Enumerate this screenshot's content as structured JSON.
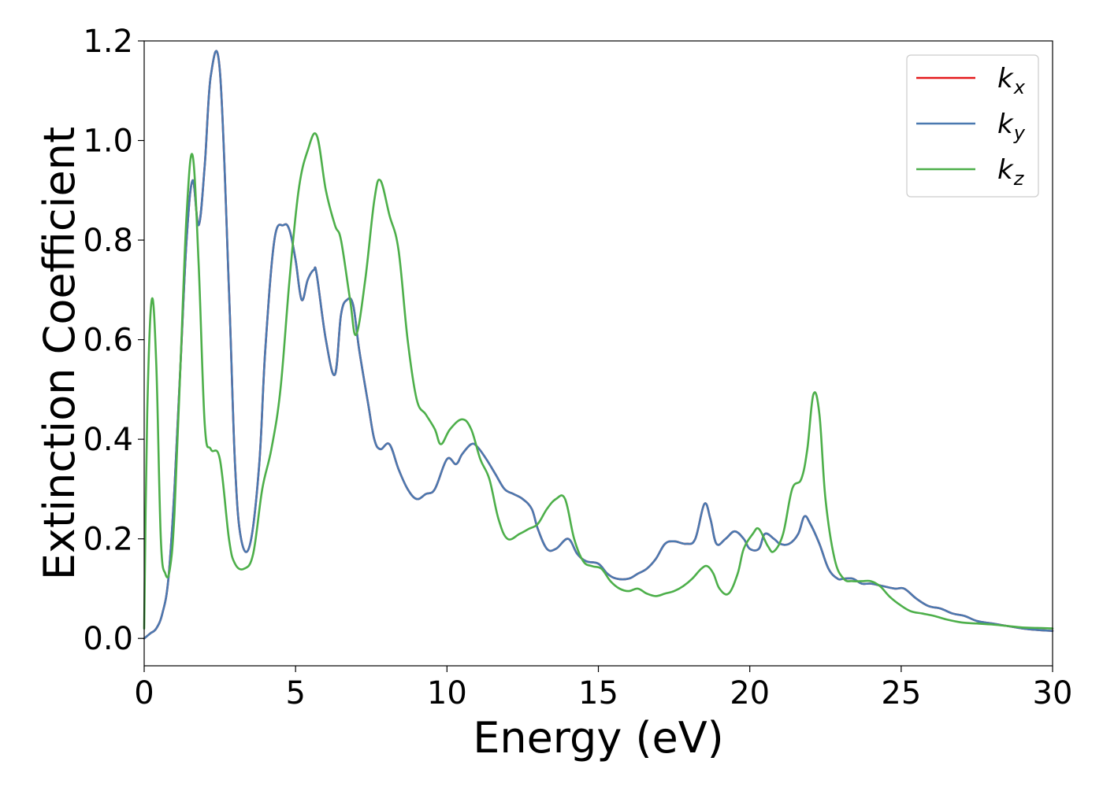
{
  "chart_data": {
    "type": "line",
    "title": "",
    "xlabel": "Energy (eV)",
    "ylabel": "Extinction Coefficient",
    "xlim": [
      0,
      30
    ],
    "ylim": [
      -0.055,
      1.2
    ],
    "xticks": [
      "0",
      "5",
      "10",
      "15",
      "20",
      "25",
      "30"
    ],
    "yticks": [
      "0.0",
      "0.2",
      "0.4",
      "0.6",
      "0.8",
      "1.0",
      "1.2"
    ],
    "grid": false,
    "legend_position": "top-right",
    "series": [
      {
        "name": "k",
        "subscript": "x",
        "color": "#e41a1c",
        "x": [
          0,
          0.2,
          0.4,
          0.6,
          0.8,
          1.0,
          1.2,
          1.4,
          1.6,
          1.8,
          2.0,
          2.2,
          2.5,
          2.8,
          3.0,
          3.2,
          3.5,
          3.8,
          4.0,
          4.3,
          4.6,
          4.8,
          5.0,
          5.2,
          5.4,
          5.6,
          5.7,
          6.0,
          6.3,
          6.5,
          6.7,
          6.9,
          7.1,
          7.4,
          7.6,
          7.8,
          8.1,
          8.4,
          8.7,
          9.0,
          9.3,
          9.6,
          10.0,
          10.3,
          10.5,
          10.8,
          11.0,
          11.3,
          11.6,
          11.9,
          12.2,
          12.5,
          12.8,
          13.0,
          13.3,
          13.6,
          14.0,
          14.3,
          14.6,
          15.0,
          15.3,
          15.6,
          16.0,
          16.3,
          16.6,
          16.9,
          17.2,
          17.5,
          17.9,
          18.2,
          18.5,
          18.7,
          18.9,
          19.2,
          19.5,
          19.8,
          20.0,
          20.3,
          20.5,
          20.8,
          21.0,
          21.3,
          21.6,
          21.8,
          22.0,
          22.3,
          22.6,
          22.9,
          23.1,
          23.4,
          23.7,
          24.0,
          24.4,
          24.8,
          25.1,
          25.5,
          25.9,
          26.3,
          26.7,
          27.1,
          27.5,
          28.0,
          28.5,
          29.0,
          29.5,
          30.0
        ],
        "values": [
          0.0,
          0.01,
          0.02,
          0.05,
          0.12,
          0.3,
          0.55,
          0.8,
          0.92,
          0.83,
          0.95,
          1.13,
          1.14,
          0.7,
          0.35,
          0.2,
          0.19,
          0.35,
          0.58,
          0.8,
          0.83,
          0.82,
          0.76,
          0.68,
          0.72,
          0.74,
          0.73,
          0.6,
          0.53,
          0.65,
          0.68,
          0.67,
          0.58,
          0.47,
          0.4,
          0.38,
          0.39,
          0.34,
          0.3,
          0.28,
          0.29,
          0.3,
          0.36,
          0.35,
          0.37,
          0.39,
          0.385,
          0.36,
          0.33,
          0.3,
          0.29,
          0.28,
          0.26,
          0.22,
          0.18,
          0.18,
          0.2,
          0.17,
          0.155,
          0.15,
          0.13,
          0.12,
          0.12,
          0.13,
          0.14,
          0.16,
          0.19,
          0.195,
          0.19,
          0.2,
          0.27,
          0.24,
          0.19,
          0.2,
          0.215,
          0.2,
          0.18,
          0.18,
          0.21,
          0.2,
          0.19,
          0.19,
          0.21,
          0.245,
          0.23,
          0.19,
          0.14,
          0.12,
          0.12,
          0.12,
          0.11,
          0.11,
          0.105,
          0.1,
          0.1,
          0.08,
          0.065,
          0.06,
          0.05,
          0.045,
          0.035,
          0.03,
          0.025,
          0.02,
          0.017,
          0.015
        ]
      },
      {
        "name": "k",
        "subscript": "y",
        "color": "#4a79b0",
        "x": [
          0,
          0.2,
          0.4,
          0.6,
          0.8,
          1.0,
          1.2,
          1.4,
          1.6,
          1.8,
          2.0,
          2.2,
          2.5,
          2.8,
          3.0,
          3.2,
          3.5,
          3.8,
          4.0,
          4.3,
          4.6,
          4.8,
          5.0,
          5.2,
          5.4,
          5.6,
          5.7,
          6.0,
          6.3,
          6.5,
          6.7,
          6.9,
          7.1,
          7.4,
          7.6,
          7.8,
          8.1,
          8.4,
          8.7,
          9.0,
          9.3,
          9.6,
          10.0,
          10.3,
          10.5,
          10.8,
          11.0,
          11.3,
          11.6,
          11.9,
          12.2,
          12.5,
          12.8,
          13.0,
          13.3,
          13.6,
          14.0,
          14.3,
          14.6,
          15.0,
          15.3,
          15.6,
          16.0,
          16.3,
          16.6,
          16.9,
          17.2,
          17.5,
          17.9,
          18.2,
          18.5,
          18.7,
          18.9,
          19.2,
          19.5,
          19.8,
          20.0,
          20.3,
          20.5,
          20.8,
          21.0,
          21.3,
          21.6,
          21.8,
          22.0,
          22.3,
          22.6,
          22.9,
          23.1,
          23.4,
          23.7,
          24.0,
          24.4,
          24.8,
          25.1,
          25.5,
          25.9,
          26.3,
          26.7,
          27.1,
          27.5,
          28.0,
          28.5,
          29.0,
          29.5,
          30.0
        ],
        "values": [
          0.0,
          0.01,
          0.02,
          0.05,
          0.12,
          0.3,
          0.55,
          0.8,
          0.92,
          0.83,
          0.95,
          1.13,
          1.14,
          0.7,
          0.35,
          0.2,
          0.19,
          0.35,
          0.58,
          0.8,
          0.83,
          0.82,
          0.76,
          0.68,
          0.72,
          0.74,
          0.73,
          0.6,
          0.53,
          0.65,
          0.68,
          0.67,
          0.58,
          0.47,
          0.4,
          0.38,
          0.39,
          0.34,
          0.3,
          0.28,
          0.29,
          0.3,
          0.36,
          0.35,
          0.37,
          0.39,
          0.385,
          0.36,
          0.33,
          0.3,
          0.29,
          0.28,
          0.26,
          0.22,
          0.18,
          0.18,
          0.2,
          0.17,
          0.155,
          0.15,
          0.13,
          0.12,
          0.12,
          0.13,
          0.14,
          0.16,
          0.19,
          0.195,
          0.19,
          0.2,
          0.27,
          0.24,
          0.19,
          0.2,
          0.215,
          0.2,
          0.18,
          0.18,
          0.21,
          0.2,
          0.19,
          0.19,
          0.21,
          0.245,
          0.23,
          0.19,
          0.14,
          0.12,
          0.12,
          0.12,
          0.11,
          0.11,
          0.105,
          0.1,
          0.1,
          0.08,
          0.065,
          0.06,
          0.05,
          0.045,
          0.035,
          0.03,
          0.025,
          0.02,
          0.017,
          0.015
        ]
      },
      {
        "name": "k",
        "subscript": "z",
        "color": "#4daf4a",
        "x": [
          0,
          0.1,
          0.25,
          0.4,
          0.55,
          0.7,
          0.85,
          1.0,
          1.2,
          1.4,
          1.6,
          1.8,
          2.0,
          2.2,
          2.5,
          2.8,
          3.0,
          3.3,
          3.6,
          3.9,
          4.2,
          4.5,
          4.8,
          5.1,
          5.4,
          5.7,
          6.0,
          6.3,
          6.5,
          6.8,
          7.0,
          7.3,
          7.6,
          7.8,
          8.1,
          8.4,
          8.7,
          9.0,
          9.3,
          9.6,
          9.8,
          10.1,
          10.5,
          10.8,
          11.1,
          11.4,
          11.7,
          12.0,
          12.4,
          12.7,
          13.0,
          13.3,
          13.6,
          13.9,
          14.2,
          14.5,
          14.8,
          15.1,
          15.4,
          15.7,
          16.0,
          16.3,
          16.6,
          16.9,
          17.2,
          17.5,
          17.8,
          18.1,
          18.4,
          18.6,
          18.8,
          19.0,
          19.3,
          19.6,
          19.8,
          20.1,
          20.3,
          20.6,
          20.8,
          21.1,
          21.4,
          21.7,
          21.9,
          22.1,
          22.3,
          22.5,
          22.8,
          23.1,
          23.4,
          23.7,
          24.0,
          24.3,
          24.6,
          24.9,
          25.3,
          25.7,
          26.1,
          26.5,
          27.0,
          27.5,
          28.0,
          28.5,
          29.0,
          29.5,
          30.0
        ],
        "values": [
          0.02,
          0.45,
          0.68,
          0.55,
          0.2,
          0.13,
          0.14,
          0.25,
          0.55,
          0.85,
          0.97,
          0.75,
          0.43,
          0.38,
          0.36,
          0.2,
          0.15,
          0.14,
          0.17,
          0.3,
          0.38,
          0.5,
          0.72,
          0.9,
          0.98,
          1.01,
          0.9,
          0.83,
          0.8,
          0.68,
          0.61,
          0.72,
          0.88,
          0.92,
          0.85,
          0.78,
          0.6,
          0.48,
          0.45,
          0.42,
          0.39,
          0.42,
          0.44,
          0.42,
          0.36,
          0.32,
          0.24,
          0.2,
          0.21,
          0.22,
          0.23,
          0.26,
          0.28,
          0.28,
          0.2,
          0.155,
          0.145,
          0.14,
          0.115,
          0.1,
          0.095,
          0.1,
          0.09,
          0.085,
          0.09,
          0.095,
          0.105,
          0.12,
          0.14,
          0.145,
          0.13,
          0.1,
          0.09,
          0.13,
          0.18,
          0.21,
          0.22,
          0.185,
          0.175,
          0.21,
          0.3,
          0.32,
          0.38,
          0.49,
          0.45,
          0.28,
          0.16,
          0.12,
          0.115,
          0.115,
          0.115,
          0.105,
          0.085,
          0.07,
          0.055,
          0.05,
          0.045,
          0.038,
          0.032,
          0.03,
          0.028,
          0.025,
          0.022,
          0.021,
          0.02
        ]
      }
    ]
  }
}
